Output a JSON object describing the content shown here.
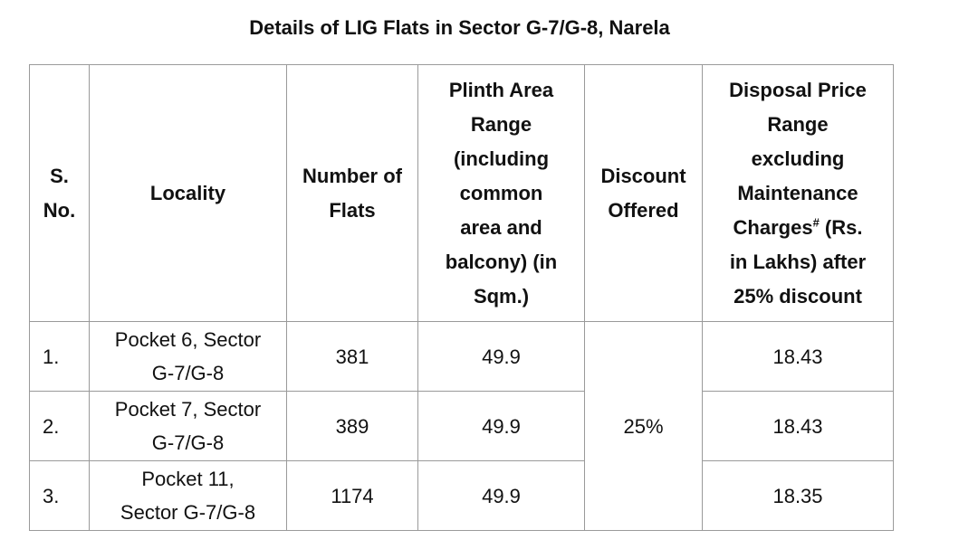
{
  "title": "Details of LIG Flats in Sector G-7/G-8, Narela",
  "table": {
    "headers": {
      "sno": [
        "S.",
        "No."
      ],
      "locality": "Locality",
      "flats": [
        "Number of",
        "Flats"
      ],
      "plinth": [
        "Plinth Area",
        "Range",
        "(including",
        "common",
        "area and",
        "balcony) (in",
        "Sqm.)"
      ],
      "discount": [
        "Discount",
        "Offered"
      ],
      "price": [
        "Disposal Price",
        "Range",
        "excluding",
        "Maintenance",
        "Charges",
        "#",
        " (Rs.",
        "in Lakhs) after",
        "25% discount"
      ]
    },
    "rows": [
      {
        "sno": "1.",
        "locality": [
          "Pocket 6, Sector",
          "G-7/G-8"
        ],
        "flats": "381",
        "plinth": "49.9",
        "price": "18.43"
      },
      {
        "sno": "2.",
        "locality": [
          "Pocket 7, Sector",
          "G-7/G-8"
        ],
        "flats": "389",
        "plinth": "49.9",
        "price": "18.43"
      },
      {
        "sno": "3.",
        "locality": [
          "Pocket 11,",
          "Sector G-7/G-8"
        ],
        "flats": "1174",
        "plinth": "49.9",
        "price": "18.35"
      }
    ],
    "discount_value": "25%"
  }
}
